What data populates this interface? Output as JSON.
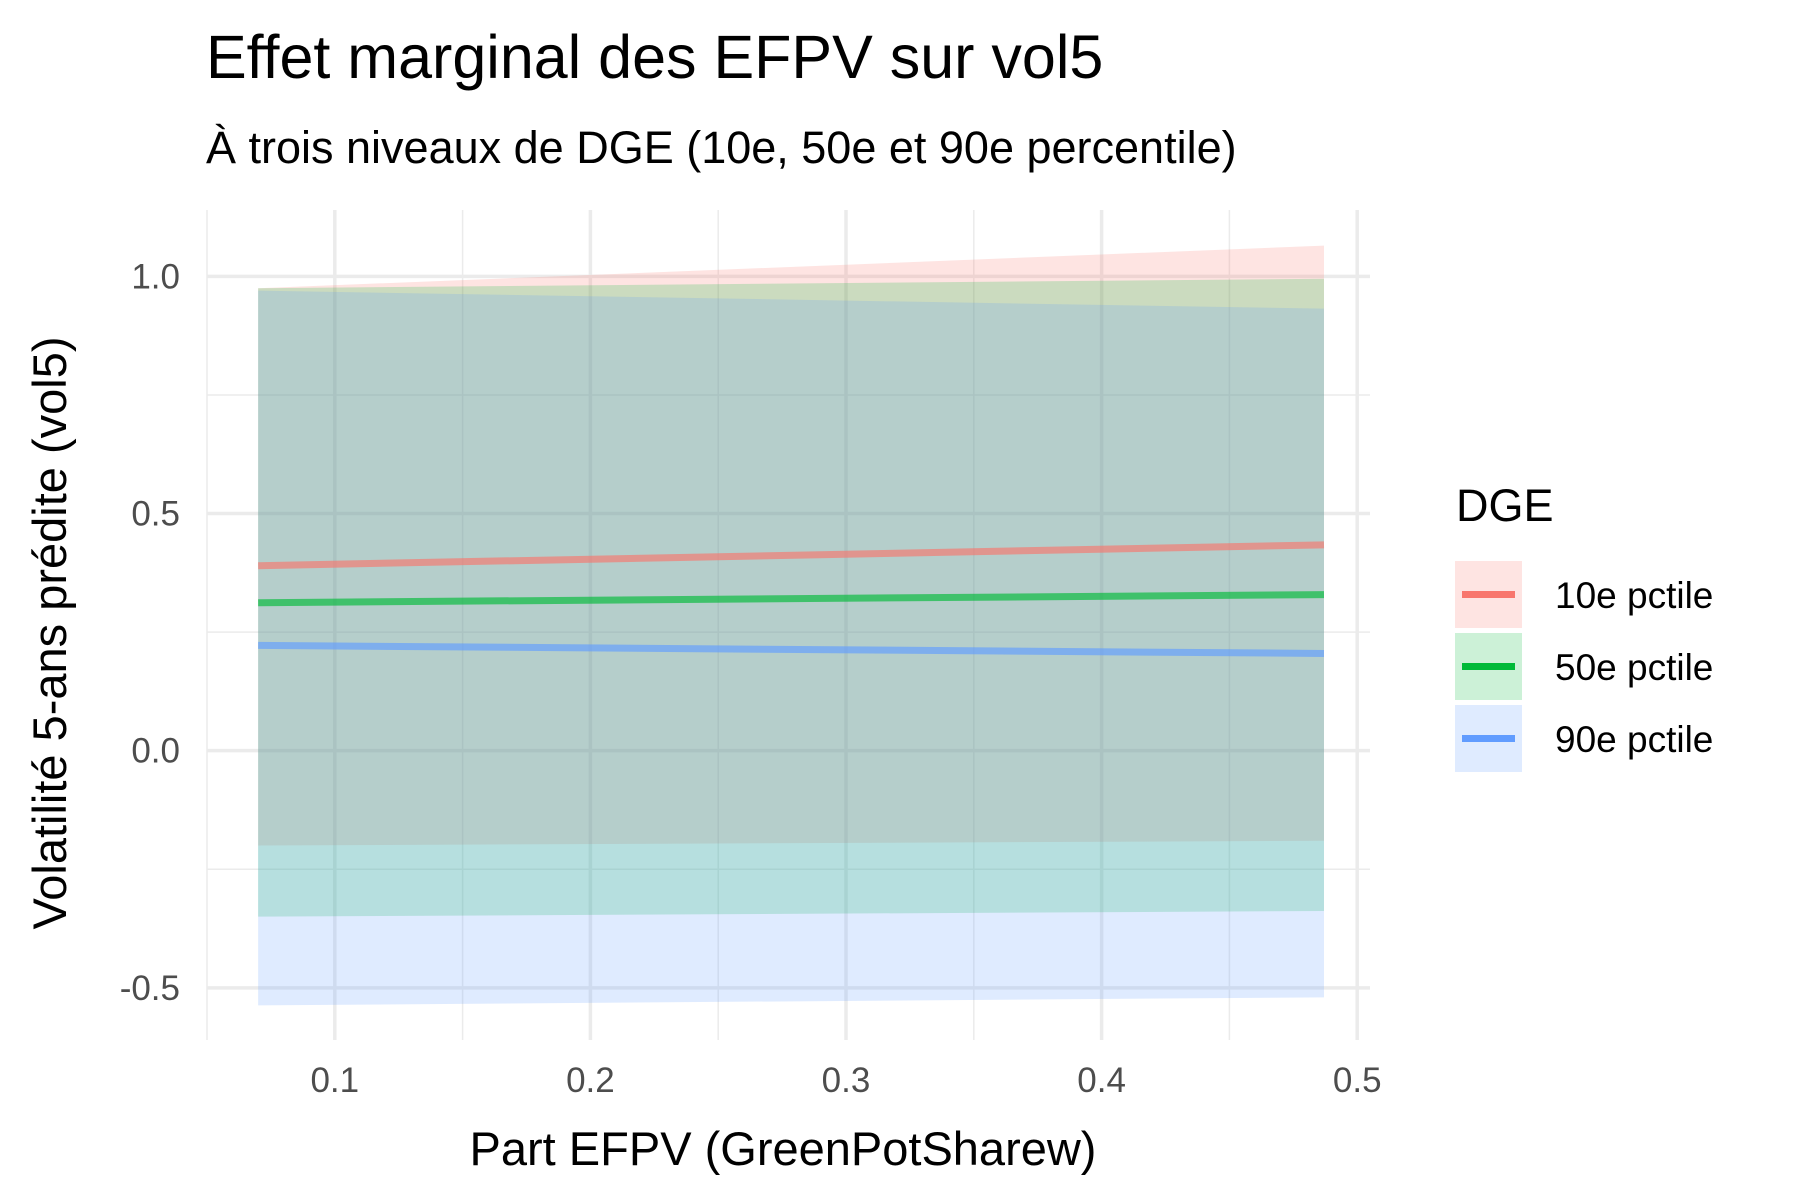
{
  "chart_data": {
    "type": "line",
    "title": "Effet marginal des EFPV sur vol5",
    "subtitle": "À trois niveaux de DGE (10e, 50e et 90e percentile)",
    "xlabel": "Part EFPV (GreenPotSharew)",
    "ylabel": "Volatilité 5-ans prédite (vol5)",
    "xlim": [
      0.05,
      0.505
    ],
    "ylim": [
      -0.61,
      1.14
    ],
    "x_ticks": [
      0.1,
      0.2,
      0.3,
      0.4,
      0.5
    ],
    "x_tick_labels": [
      "0.1",
      "0.2",
      "0.3",
      "0.4",
      "0.5"
    ],
    "y_ticks": [
      -0.5,
      0.0,
      0.5,
      1.0
    ],
    "y_tick_labels": [
      "-0.5",
      "0.0",
      "0.5",
      "1.0"
    ],
    "grid": true,
    "legend": {
      "title": "DGE",
      "position": "right"
    },
    "x": [
      0.07,
      0.487
    ],
    "series": [
      {
        "name": "10e pctile",
        "color": "#F8766D",
        "values": [
          0.39,
          0.434
        ],
        "lower": [
          -0.2,
          -0.19
        ],
        "upper": [
          0.975,
          1.065
        ]
      },
      {
        "name": "50e pctile",
        "color": "#00BA38",
        "values": [
          0.312,
          0.329
        ],
        "lower": [
          -0.35,
          -0.338
        ],
        "upper": [
          0.975,
          0.995
        ]
      },
      {
        "name": "90e pctile",
        "color": "#619CFF",
        "values": [
          0.222,
          0.205
        ],
        "lower": [
          -0.537,
          -0.52
        ],
        "upper": [
          0.97,
          0.932
        ]
      }
    ]
  }
}
